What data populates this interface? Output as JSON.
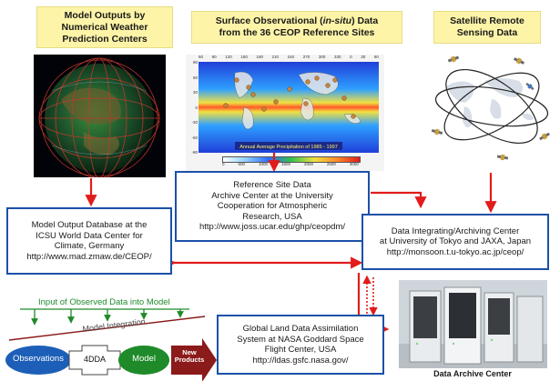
{
  "headers": {
    "nwp": [
      "Model Outputs by",
      "Numerical Weather",
      "Prediction Centers"
    ],
    "surface_line1_a": "Surface Observational (",
    "surface_line1_b": "in-situ",
    "surface_line1_c": ") Data",
    "surface_line2": "from the 36 CEOP Reference Sites",
    "satellite": [
      "Satellite Remote",
      "Sensing Data"
    ]
  },
  "nodes": {
    "ucar": [
      "Reference Site Data",
      "Archive Center at the University",
      "Cooperation for Atmospheric",
      "Research, USA",
      "http://www.joss.ucar.edu/ghp/ceopdm/"
    ],
    "mpi": [
      "Model Output Database at the",
      "ICSU World Data Center for",
      "Climate, Germany",
      "http://www.mad.zmaw.de/CEOP/"
    ],
    "tokyo": [
      "Data Integrating/Archiving Center",
      "at University of Tokyo and JAXA, Japan",
      "http://monsoon.t.u-tokyo.ac.jp/ceop/"
    ],
    "nasa": [
      "Global Land Data Assimilation",
      "System at NASA Goddard Space",
      "Flight Center, USA",
      "http://ldas.gsfc.nasa.gov/"
    ]
  },
  "precip_map": {
    "caption": "Annual Average Precipitation of 1985 - 1997",
    "x_ticks": [
      "60",
      "90",
      "120",
      "150",
      "180",
      "210",
      "240",
      "270",
      "300",
      "330",
      "0",
      "30",
      "60"
    ],
    "y_ticks": [
      "90",
      "60",
      "30",
      "0",
      "-30",
      "-60",
      "-90"
    ],
    "colorbar_ticks": [
      "0",
      "500",
      "1000",
      "1500",
      "2000",
      "2500",
      "3000"
    ]
  },
  "process": {
    "input_label": "Input of Observed Data into Model",
    "integration_label": "Model Integration",
    "observations": "Observations",
    "fdda": "4DDA",
    "model": "Model",
    "new_products": [
      "New",
      "Products"
    ]
  },
  "archive_caption": "Data Archive Center",
  "colors": {
    "arrow_red": "#e21b1b",
    "node_border": "#1c50a8",
    "header_bg": "#fdf4a8",
    "process_blue": "#1d5fb8",
    "process_green": "#1f8a2a",
    "products_maroon": "#8b1a1a"
  }
}
